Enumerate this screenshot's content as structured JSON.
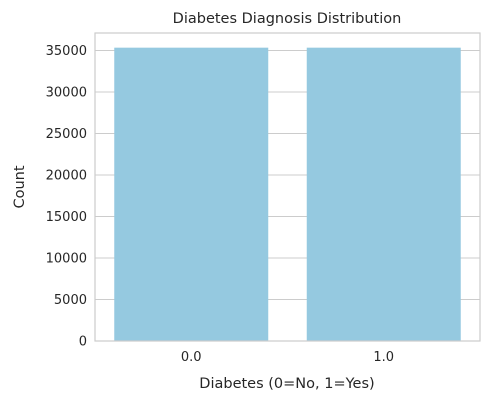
{
  "chart_data": {
    "type": "bar",
    "title": "Diabetes Diagnosis Distribution",
    "xlabel": "Diabetes (0=No, 1=Yes)",
    "ylabel": "Count",
    "categories": [
      "0.0",
      "1.0"
    ],
    "values": [
      35346,
      35346
    ],
    "ylim": [
      0,
      37114
    ],
    "yticks": [
      0,
      5000,
      10000,
      15000,
      20000,
      25000,
      30000,
      35000
    ],
    "grid": "horizontal",
    "bar_color": "#95c9e0",
    "grid_color": "#cccccc",
    "text_color": "#262626"
  }
}
